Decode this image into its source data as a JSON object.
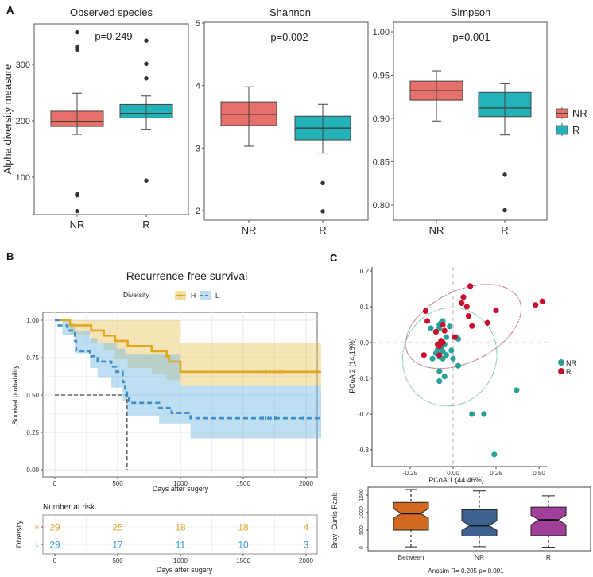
{
  "figure": {
    "panel_letters": [
      "A",
      "B",
      "C"
    ]
  },
  "chart_data": [
    {
      "id": "A1",
      "type": "box",
      "title": "Observed species",
      "ylabel": "Alpha diversity measure",
      "xlabel": "",
      "categories": [
        "NR",
        "R"
      ],
      "ylim": [
        30,
        370
      ],
      "yticks": [
        100,
        200,
        300
      ],
      "annotation": "p=0.249",
      "boxes": [
        {
          "group": "NR",
          "whisker_low": 176,
          "q1": 190,
          "median": 199,
          "q3": 217,
          "whisker_high": 249,
          "outliers": [
            357,
            331,
            326,
            70,
            68,
            40
          ]
        },
        {
          "group": "R",
          "whisker_low": 185,
          "q1": 205,
          "median": 213,
          "q3": 229,
          "whisker_high": 244,
          "outliers": [
            342,
            301,
            275,
            94
          ]
        }
      ]
    },
    {
      "id": "A2",
      "type": "box",
      "title": "Shannon",
      "categories": [
        "NR",
        "R"
      ],
      "ylim": [
        1.85,
        5.05
      ],
      "yticks": [
        2,
        3,
        4,
        5
      ],
      "annotation": "p=0.002",
      "boxes": [
        {
          "group": "NR",
          "whisker_low": 3.03,
          "q1": 3.36,
          "median": 3.54,
          "q3": 3.74,
          "whisker_high": 3.98
        },
        {
          "group": "R",
          "whisker_low": 2.92,
          "q1": 3.13,
          "median": 3.32,
          "q3": 3.51,
          "whisker_high": 3.7,
          "outliers": [
            2.44,
            1.99
          ]
        }
      ]
    },
    {
      "id": "A3",
      "type": "box",
      "title": "Simpson",
      "categories": [
        "NR",
        "R"
      ],
      "ylim": [
        0.784,
        1.01
      ],
      "yticks": [
        "1.00",
        "0.95",
        "0.90",
        "0.85",
        "0.80"
      ],
      "annotation": "p=0.001",
      "boxes": [
        {
          "group": "NR",
          "whisker_low": 0.897,
          "q1": 0.921,
          "median": 0.932,
          "q3": 0.943,
          "whisker_high": 0.955
        },
        {
          "group": "R",
          "whisker_low": 0.881,
          "q1": 0.902,
          "median": 0.912,
          "q3": 0.93,
          "whisker_high": 0.94,
          "outliers": [
            0.835,
            0.794
          ]
        }
      ],
      "legend": {
        "placement": "right",
        "entries": [
          {
            "label": "NR",
            "color": "#E8706A"
          },
          {
            "label": "R",
            "color": "#22B2B7"
          }
        ]
      }
    },
    {
      "id": "B",
      "type": "line",
      "subtype": "kaplan-meier",
      "title": "Recurrence-free survival",
      "xlabel": "Days after sugery",
      "ylabel": "Survival probability",
      "xlim": [
        -100,
        2120
      ],
      "ylim": [
        -0.05,
        1.02
      ],
      "xticks": [
        0,
        500,
        1000,
        1500,
        2000
      ],
      "yticks": [
        "0.00",
        "0.25",
        "0.50",
        "0.75",
        "1.00"
      ],
      "legend": {
        "title": "Diversity",
        "placement": "top",
        "entries": [
          {
            "label": "H",
            "color": "#E0A820"
          },
          {
            "label": "L",
            "color": "#3C8FC8"
          }
        ]
      },
      "annotation": "p = 0.0095",
      "median_line": {
        "y": 0.5,
        "x": 575
      },
      "series": [
        {
          "name": "H",
          "style": "solid",
          "steps": [
            [
              0,
              1.0
            ],
            [
              120,
              0.966
            ],
            [
              290,
              0.931
            ],
            [
              390,
              0.897
            ],
            [
              480,
              0.862
            ],
            [
              580,
              0.828
            ],
            [
              770,
              0.793
            ],
            [
              890,
              0.759
            ],
            [
              910,
              0.724
            ],
            [
              1000,
              0.655
            ],
            [
              2120,
              0.655
            ]
          ],
          "ci_upper": [
            [
              0,
              1.0
            ],
            [
              500,
              1.0
            ],
            [
              950,
              1.0
            ],
            [
              1000,
              0.85
            ],
            [
              2120,
              0.85
            ]
          ],
          "ci_lower": [
            [
              0,
              1.0
            ],
            [
              120,
              0.9
            ],
            [
              290,
              0.85
            ],
            [
              390,
              0.8
            ],
            [
              480,
              0.74
            ],
            [
              580,
              0.68
            ],
            [
              770,
              0.64
            ],
            [
              890,
              0.6
            ],
            [
              1000,
              0.56
            ],
            [
              2120,
              0.56
            ]
          ],
          "censor_x": [
            1620,
            1650,
            1680,
            1710,
            1740,
            1760,
            1790,
            1810,
            1920,
            2110
          ]
        },
        {
          "name": "L",
          "style": "dashed",
          "steps": [
            [
              0,
              1.0
            ],
            [
              30,
              0.966
            ],
            [
              100,
              0.931
            ],
            [
              160,
              0.862
            ],
            [
              170,
              0.793
            ],
            [
              280,
              0.759
            ],
            [
              340,
              0.724
            ],
            [
              450,
              0.69
            ],
            [
              490,
              0.655
            ],
            [
              540,
              0.586
            ],
            [
              560,
              0.517
            ],
            [
              575,
              0.483
            ],
            [
              590,
              0.448
            ],
            [
              830,
              0.414
            ],
            [
              930,
              0.379
            ],
            [
              1080,
              0.345
            ],
            [
              2120,
              0.345
            ]
          ],
          "ci_upper": [
            [
              0,
              1.0
            ],
            [
              100,
              0.98
            ],
            [
              160,
              0.93
            ],
            [
              280,
              0.88
            ],
            [
              340,
              0.85
            ],
            [
              490,
              0.81
            ],
            [
              560,
              0.77
            ],
            [
              1000,
              0.56
            ],
            [
              1080,
              0.56
            ],
            [
              2120,
              0.56
            ]
          ],
          "ci_lower": [
            [
              0,
              1.0
            ],
            [
              60,
              0.9
            ],
            [
              160,
              0.78
            ],
            [
              280,
              0.68
            ],
            [
              340,
              0.62
            ],
            [
              450,
              0.55
            ],
            [
              540,
              0.46
            ],
            [
              575,
              0.36
            ],
            [
              830,
              0.31
            ],
            [
              1080,
              0.21
            ],
            [
              2120,
              0.21
            ]
          ],
          "censor_x": [
            1640,
            1660,
            1680,
            1700,
            1720,
            1750,
            1760,
            1980,
            2110
          ]
        }
      ]
    },
    {
      "id": "B-risk",
      "type": "table",
      "title": "Number at risk",
      "ylabel": "Diversity",
      "xlabel": "Days after sugery",
      "xticks": [
        0,
        500,
        1000,
        1500,
        2000
      ],
      "rows": [
        {
          "group": "H",
          "color": "#D9A830",
          "values": [
            29,
            25,
            18,
            18,
            4
          ]
        },
        {
          "group": "L",
          "color": "#3C9AD0",
          "values": [
            29,
            17,
            11,
            10,
            3
          ]
        }
      ]
    },
    {
      "id": "C",
      "type": "scatter",
      "xlabel": "PCoA 1 (44.46%)",
      "ylabel": "PCoA 2 (14.18%)",
      "xlim": [
        -0.43,
        0.56
      ],
      "ylim": [
        -0.335,
        0.205
      ],
      "xticks": [
        "-0.25",
        "0.00",
        "0.25",
        "0.50"
      ],
      "yticks": [
        "0.2",
        "0.1",
        "0.0",
        "-0.1",
        "-0.2",
        "-0.3"
      ],
      "legend": {
        "placement": "right",
        "entries": [
          {
            "label": "NR",
            "color": "#2AA198"
          },
          {
            "label": "R",
            "color": "#C8102E"
          }
        ]
      },
      "series": [
        {
          "name": "NR",
          "color": "#2AA198",
          "points": [
            [
              -0.07,
              0.055
            ],
            [
              -0.06,
              0.06
            ],
            [
              -0.08,
              0.05
            ],
            [
              -0.13,
              0.04
            ],
            [
              -0.08,
              0.04
            ],
            [
              -0.02,
              0.045
            ],
            [
              -0.1,
              0.03
            ],
            [
              -0.04,
              0.015
            ],
            [
              0.02,
              0.015
            ],
            [
              0.03,
              0.01
            ],
            [
              -0.05,
              -0.005
            ],
            [
              -0.07,
              -0.015
            ],
            [
              -0.09,
              -0.02
            ],
            [
              -0.06,
              -0.025
            ],
            [
              -0.1,
              -0.03
            ],
            [
              -0.04,
              -0.035
            ],
            [
              -0.01,
              -0.022
            ],
            [
              -0.08,
              -0.04
            ],
            [
              -0.12,
              -0.045
            ],
            [
              -0.06,
              -0.045
            ],
            [
              0.0,
              -0.045
            ],
            [
              0.03,
              -0.065
            ],
            [
              -0.08,
              -0.08
            ],
            [
              -0.05,
              -0.095
            ],
            [
              -0.08,
              -0.108
            ],
            [
              0.37,
              -0.133
            ],
            [
              0.11,
              -0.2
            ],
            [
              0.18,
              -0.2
            ],
            [
              0.24,
              -0.313
            ]
          ]
        },
        {
          "name": "R",
          "color": "#C8102E",
          "points": [
            [
              0.1,
              0.158
            ],
            [
              0.06,
              0.127
            ],
            [
              0.05,
              0.11
            ],
            [
              0.08,
              0.1
            ],
            [
              0.25,
              0.09
            ],
            [
              -0.16,
              0.088
            ],
            [
              0.09,
              0.074
            ],
            [
              -0.15,
              0.06
            ],
            [
              0.2,
              0.055
            ],
            [
              0.11,
              0.046
            ],
            [
              0.48,
              0.105
            ],
            [
              0.52,
              0.115
            ],
            [
              -0.06,
              0.05
            ],
            [
              -0.1,
              0.03
            ],
            [
              -0.05,
              0.033
            ],
            [
              -0.07,
              0.005
            ],
            [
              -0.09,
              -0.005
            ],
            [
              -0.08,
              -0.01
            ],
            [
              -0.06,
              0.0
            ],
            [
              0.01,
              0.015
            ],
            [
              -0.17,
              -0.035
            ],
            [
              -0.08,
              -0.035
            ]
          ]
        }
      ],
      "ellipses": [
        {
          "group": "R",
          "color": "#C48A9A",
          "center": [
            0.06,
            0.045
          ],
          "rx": 0.36,
          "ry": 0.1,
          "angle_deg": -26
        },
        {
          "group": "NR",
          "color": "#8CCFC3",
          "center": [
            -0.02,
            -0.04
          ],
          "rx": 0.29,
          "ry": 0.13,
          "angle_deg": -63
        }
      ],
      "reference_lines": {
        "x": 0,
        "y": 0
      }
    },
    {
      "id": "C-anosim",
      "type": "box",
      "subtype": "notched",
      "ylabel": "Bray–Curtis Rank",
      "xlabel": "Anosim R= 0.205 p= 0.001",
      "categories": [
        "Between",
        "NR",
        "R"
      ],
      "ylim": [
        -80,
        1720
      ],
      "yticks": [
        0,
        500,
        1000,
        1500
      ],
      "boxes": [
        {
          "group": "Between",
          "color": "#D2691E",
          "whisker_low": 20,
          "q1": 500,
          "median": 975,
          "q3": 1290,
          "whisker_high": 1660
        },
        {
          "group": "NR",
          "color": "#3D6190",
          "whisker_low": 25,
          "q1": 330,
          "median": 630,
          "q3": 1080,
          "whisker_high": 1620
        },
        {
          "group": "R",
          "color": "#A0409A",
          "whisker_low": 10,
          "q1": 340,
          "median": 790,
          "q3": 1155,
          "whisker_high": 1480
        }
      ]
    }
  ]
}
